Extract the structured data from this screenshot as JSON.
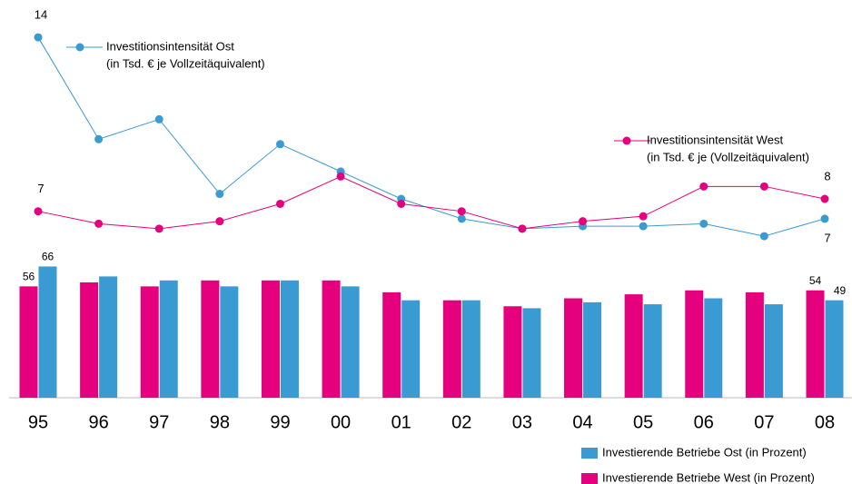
{
  "chart_data": {
    "type": "bar",
    "categories": [
      "95",
      "96",
      "97",
      "98",
      "99",
      "00",
      "01",
      "02",
      "03",
      "04",
      "05",
      "06",
      "07",
      "08"
    ],
    "ylim": [
      0,
      200
    ],
    "y2lim": [
      -0.5,
      15.5
    ],
    "series": [
      {
        "name": "Investierende Betriebe West (in Prozent)",
        "type": "bar",
        "color": "#e5007d",
        "values": [
          56,
          58,
          56,
          59,
          59,
          59,
          53,
          49,
          46,
          50,
          52,
          54,
          53,
          54
        ],
        "value_labels": [
          "56",
          null,
          null,
          null,
          null,
          null,
          null,
          null,
          null,
          null,
          null,
          null,
          null,
          "54"
        ]
      },
      {
        "name": "Investierende Betriebe Ost (in Prozent)",
        "type": "bar",
        "color": "#3a9ad2",
        "values": [
          66,
          61,
          59,
          56,
          59,
          56,
          49,
          49,
          45,
          48,
          47,
          50,
          47,
          49
        ],
        "value_labels": [
          "66",
          null,
          null,
          null,
          null,
          null,
          null,
          null,
          null,
          null,
          null,
          null,
          null,
          "49"
        ]
      },
      {
        "name": "Investitionsintensität Ost",
        "name_note": "(in Tsd. € je Vollzeitäquivalent)",
        "type": "line",
        "axis": "y2",
        "color": "#3a9ad2",
        "values": [
          14,
          9.9,
          10.7,
          7.7,
          9.7,
          8.6,
          7.5,
          6.7,
          6.3,
          6.4,
          6.4,
          6.5,
          6.0,
          6.7
        ],
        "value_labels": [
          "14",
          null,
          null,
          null,
          null,
          null,
          null,
          null,
          null,
          null,
          null,
          null,
          null,
          "7"
        ]
      },
      {
        "name": "Investitionsintensität West",
        "name_note": "(in Tsd. € je (Vollzeitäquivalent)",
        "type": "line",
        "axis": "y2",
        "color": "#e5007d",
        "values": [
          7,
          6.5,
          6.3,
          6.6,
          7.3,
          8.4,
          7.3,
          7.0,
          6.3,
          6.6,
          6.8,
          8.0,
          8.0,
          7.5
        ],
        "value_labels": [
          "7",
          null,
          null,
          null,
          null,
          null,
          null,
          null,
          null,
          null,
          null,
          null,
          null,
          "8"
        ]
      }
    ]
  }
}
